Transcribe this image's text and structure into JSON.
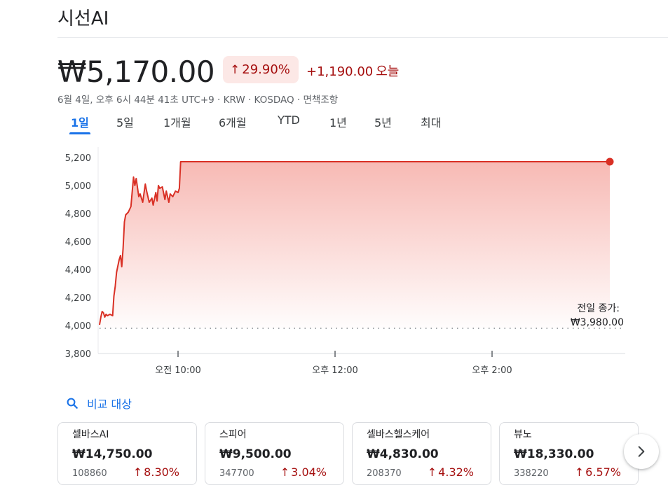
{
  "header": {
    "title": "시선AI"
  },
  "quote": {
    "price": "₩5,170.00",
    "pct_arrow": "↑",
    "pct": "29.90%",
    "change": "+1,190.00",
    "change_suffix": "오늘",
    "meta": "6월 4일, 오후 6시 44분 41초 UTC+9 · KRW · KOSDAQ · 면책조항"
  },
  "tabs": [
    "1일",
    "5일",
    "1개월",
    "6개월",
    "YTD",
    "1년",
    "5년",
    "최대"
  ],
  "active_tab": 0,
  "colors": {
    "up": "#a50e0e",
    "line": "#d93025",
    "accent": "#1a73e8"
  },
  "chart_data": {
    "type": "area",
    "xlabel": "",
    "ylabel": "",
    "ylim": [
      3800,
      5200
    ],
    "yticks": [
      5200,
      5000,
      4800,
      4600,
      4400,
      4200,
      4000,
      3800
    ],
    "ytick_labels": [
      "5,200",
      "5,000",
      "4,800",
      "4,600",
      "4,400",
      "4,200",
      "4,000",
      "3,800"
    ],
    "xlim": [
      "09:00",
      "15:30"
    ],
    "xticks": [
      "10:00",
      "12:00",
      "14:00"
    ],
    "xtick_labels": [
      "오전 10:00",
      "오후 12:00",
      "오후 2:00"
    ],
    "previous_close": 3980,
    "previous_close_label": "전일 종가:",
    "previous_close_value": "₩3,980.00",
    "grid": false,
    "series": [
      {
        "points": [
          [
            "09:00",
            4005
          ],
          [
            "09:01",
            4060
          ],
          [
            "09:02",
            4100
          ],
          [
            "09:03",
            4090
          ],
          [
            "09:04",
            4060
          ],
          [
            "09:05",
            4080
          ],
          [
            "09:06",
            4070
          ],
          [
            "09:08",
            4080
          ],
          [
            "09:10",
            4070
          ],
          [
            "09:11",
            4210
          ],
          [
            "09:12",
            4280
          ],
          [
            "09:13",
            4380
          ],
          [
            "09:15",
            4470
          ],
          [
            "09:16",
            4500
          ],
          [
            "09:17",
            4420
          ],
          [
            "09:18",
            4550
          ],
          [
            "09:19",
            4740
          ],
          [
            "09:20",
            4790
          ],
          [
            "09:22",
            4810
          ],
          [
            "09:24",
            4850
          ],
          [
            "09:25",
            4960
          ],
          [
            "09:26",
            5060
          ],
          [
            "09:27",
            5000
          ],
          [
            "09:28",
            5050
          ],
          [
            "09:30",
            4920
          ],
          [
            "09:31",
            4940
          ],
          [
            "09:33",
            4880
          ],
          [
            "09:35",
            5010
          ],
          [
            "09:36",
            4960
          ],
          [
            "09:38",
            4880
          ],
          [
            "09:40",
            4910
          ],
          [
            "09:41",
            4860
          ],
          [
            "09:43",
            4950
          ],
          [
            "09:44",
            4890
          ],
          [
            "09:45",
            5000
          ],
          [
            "09:46",
            4980
          ],
          [
            "09:48",
            4990
          ],
          [
            "09:50",
            4900
          ],
          [
            "09:51",
            4960
          ],
          [
            "09:53",
            4880
          ],
          [
            "09:54",
            4940
          ],
          [
            "09:56",
            4920
          ],
          [
            "09:58",
            4960
          ],
          [
            "10:00",
            4950
          ],
          [
            "10:01",
            4980
          ],
          [
            "10:02",
            5170
          ],
          [
            "15:30",
            5170
          ]
        ]
      }
    ]
  },
  "compare": {
    "label": "비교 대상"
  },
  "related": [
    {
      "name": "셀바스AI",
      "price": "₩14,750.00",
      "code": "108860",
      "arrow": "↑",
      "change": "8.30%"
    },
    {
      "name": "스피어",
      "price": "₩9,500.00",
      "code": "347700",
      "arrow": "↑",
      "change": "3.04%"
    },
    {
      "name": "셀바스헬스케어",
      "price": "₩4,830.00",
      "code": "208370",
      "arrow": "↑",
      "change": "4.32%"
    },
    {
      "name": "뷰노",
      "price": "₩18,330.00",
      "code": "338220",
      "arrow": "↑",
      "change": "6.57%"
    }
  ]
}
